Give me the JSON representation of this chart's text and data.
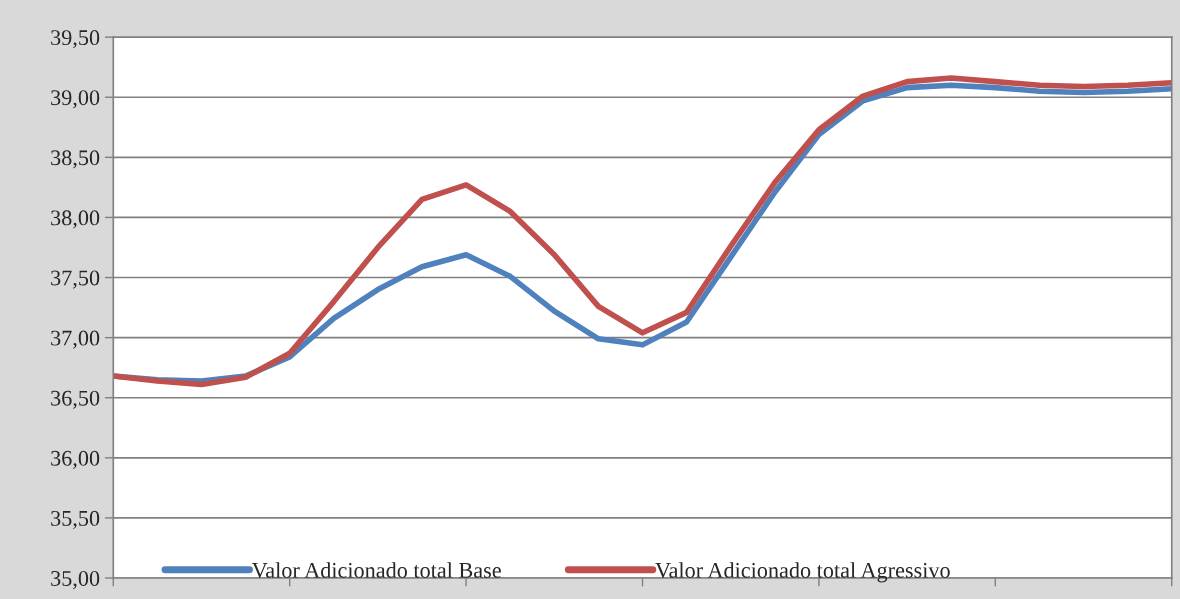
{
  "chart_data": {
    "type": "line",
    "categories": [
      null,
      null,
      null,
      null,
      null,
      null,
      null,
      null,
      null,
      null,
      null,
      null,
      null,
      null,
      null,
      null,
      null,
      null,
      null,
      null,
      null,
      null,
      null,
      null,
      null
    ],
    "series": [
      {
        "name": "Valor Adicionado total Base",
        "color": "#4f81bd",
        "values": [
          36.68,
          36.65,
          36.64,
          36.68,
          36.84,
          37.16,
          37.4,
          37.59,
          37.69,
          37.51,
          37.22,
          36.99,
          36.94,
          37.13,
          37.67,
          38.21,
          38.69,
          38.97,
          39.08,
          39.1,
          39.08,
          39.05,
          39.04,
          39.05,
          39.07
        ]
      },
      {
        "name": "Valor Adicionado total Agressivo",
        "color": "#c0504d",
        "values": [
          36.68,
          36.64,
          36.61,
          36.67,
          36.87,
          37.3,
          37.75,
          38.15,
          38.27,
          38.05,
          37.69,
          37.26,
          37.04,
          37.21,
          37.76,
          38.29,
          38.73,
          39.01,
          39.13,
          39.16,
          39.13,
          39.1,
          39.09,
          39.1,
          39.12
        ]
      }
    ],
    "ylim": [
      35,
      39.5
    ],
    "yticks": [
      {
        "value": 35,
        "label": "35,00"
      },
      {
        "value": 35.5,
        "label": "35,50"
      },
      {
        "value": 36,
        "label": "36,00"
      },
      {
        "value": 36.5,
        "label": "36,50"
      },
      {
        "value": 37,
        "label": "37,00"
      },
      {
        "value": 37.5,
        "label": "37,50"
      },
      {
        "value": 38,
        "label": "38,00"
      },
      {
        "value": 38.5,
        "label": "38,50"
      },
      {
        "value": 39,
        "label": "39,00"
      },
      {
        "value": 39.5,
        "label": "39,50"
      }
    ],
    "grid": "y",
    "legend": "bottom",
    "marker": "none",
    "line_style": "solid"
  }
}
